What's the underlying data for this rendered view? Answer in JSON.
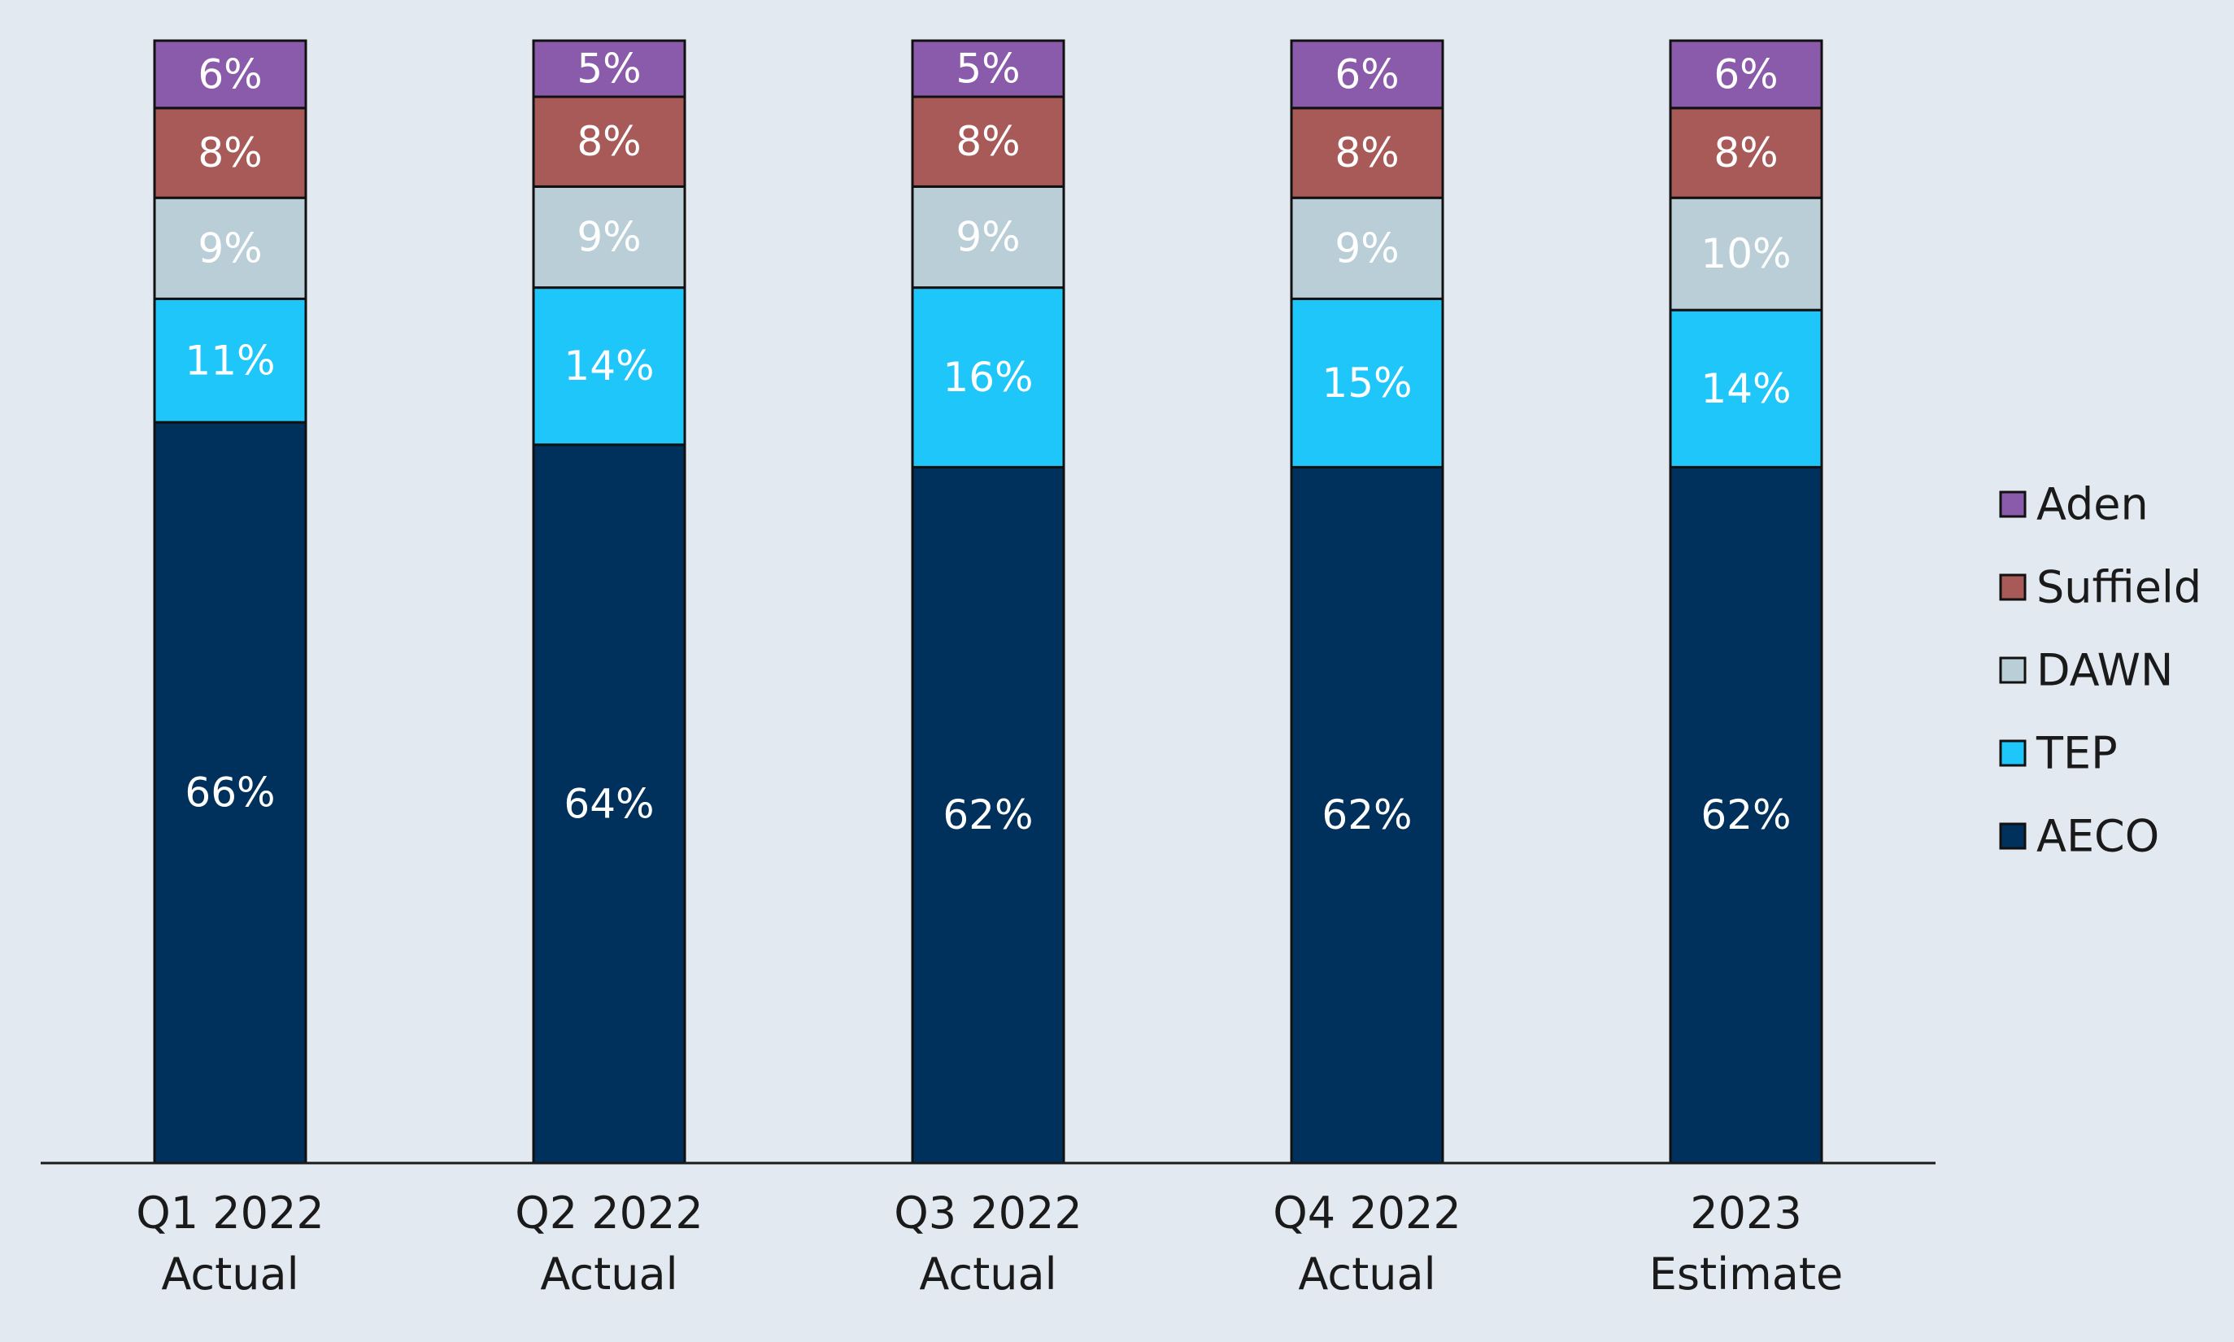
{
  "chart_data": {
    "type": "bar",
    "stacked": true,
    "value_format": "percent",
    "categories": [
      [
        "Q1 2022",
        "Actual"
      ],
      [
        "Q2 2022",
        "Actual"
      ],
      [
        "Q3 2022",
        "Actual"
      ],
      [
        "Q4 2022",
        "Actual"
      ],
      [
        "2023",
        "Estimate"
      ]
    ],
    "series": [
      {
        "name": "AECO",
        "color": "#00305c",
        "values": [
          66,
          64,
          62,
          62,
          62
        ]
      },
      {
        "name": "TEP",
        "color": "#1ec6fa",
        "values": [
          11,
          14,
          16,
          15,
          14
        ]
      },
      {
        "name": "DAWN",
        "color": "#b9ced6",
        "values": [
          9,
          9,
          9,
          9,
          10
        ]
      },
      {
        "name": "Suffield",
        "color": "#a85a58",
        "values": [
          8,
          8,
          8,
          8,
          8
        ]
      },
      {
        "name": "Aden",
        "color": "#8a5aab",
        "values": [
          6,
          5,
          5,
          6,
          6
        ]
      }
    ],
    "data_labels": true,
    "legend_position": "right",
    "legend_order": [
      "Aden",
      "Suffield",
      "DAWN",
      "TEP",
      "AECO"
    ],
    "grid": false,
    "ylim": [
      0,
      100
    ],
    "title": "",
    "xlabel": "",
    "ylabel": ""
  },
  "colors": {
    "background": "#e2e9f0",
    "axis": "#1a1a1a",
    "bar_outline": "#111111"
  }
}
